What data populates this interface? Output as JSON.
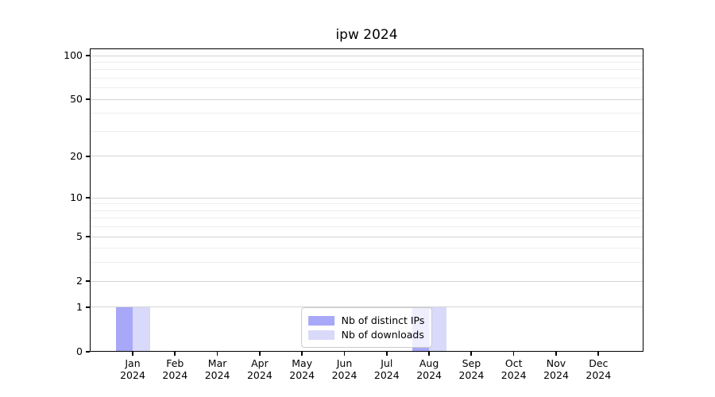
{
  "chart_data": {
    "type": "bar",
    "title": "ipw 2024",
    "categories": [
      "Jan",
      "Feb",
      "Mar",
      "Apr",
      "May",
      "Jun",
      "Jul",
      "Aug",
      "Sep",
      "Oct",
      "Nov",
      "Dec"
    ],
    "x_tick_year": "2024",
    "series": [
      {
        "name": "Nb of distinct IPs",
        "color": "#a8a8f8",
        "values": [
          1,
          0,
          0,
          0,
          0,
          0,
          0,
          1,
          0,
          0,
          0,
          0
        ]
      },
      {
        "name": "Nb of downloads",
        "color": "#d9d9fa",
        "values": [
          1,
          0,
          0,
          0,
          0,
          0,
          0,
          1,
          0,
          0,
          0,
          0
        ]
      }
    ],
    "xlabel": "",
    "ylabel": "",
    "y_ticks": [
      0,
      1,
      2,
      5,
      10,
      20,
      50,
      100
    ],
    "y_minor_ticks": [
      3,
      4,
      6,
      7,
      8,
      9,
      30,
      40,
      60,
      70,
      80,
      90
    ],
    "y_scale": "log1p",
    "ylim": [
      0,
      112
    ],
    "grid": "horizontal",
    "legend_position": "lower-center"
  },
  "colors": {
    "axis": "#000000",
    "grid_major": "#d4d4d4",
    "grid_minor": "#eeeeee",
    "legend_border": "#cccccc",
    "bar_distinct_ips": "#a8a8f8",
    "bar_downloads": "#d9d9fa",
    "text": "#000000",
    "background": "#ffffff"
  }
}
